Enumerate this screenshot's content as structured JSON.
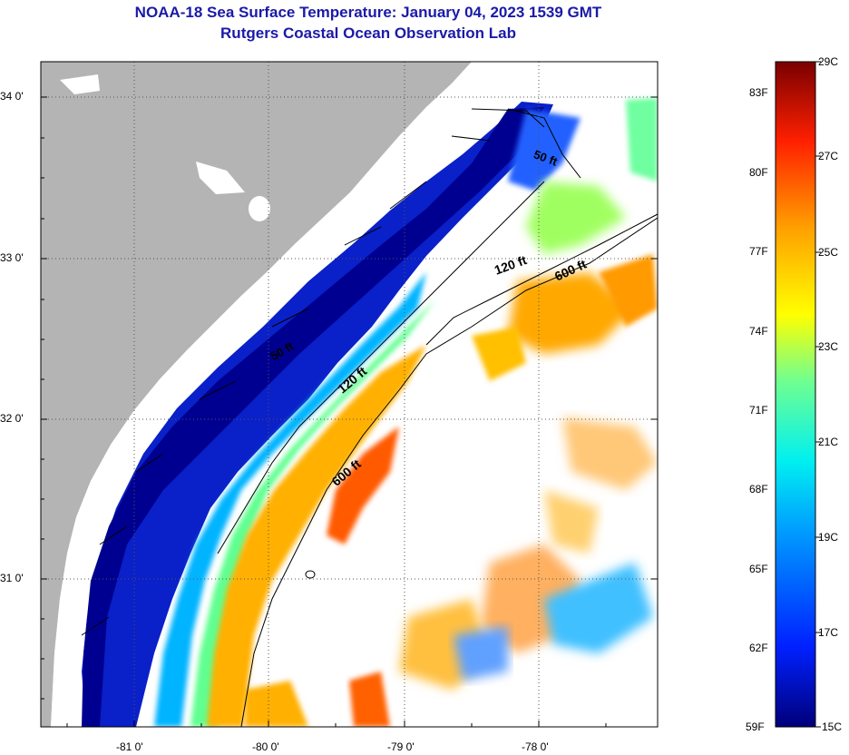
{
  "title": "NOAA-18 Sea Surface Temperature:  January 04, 2023 1539 GMT",
  "subtitle": "Rutgers Coastal Ocean Observation Lab",
  "map": {
    "lat_labels": [
      "34 0'",
      "33 0'",
      "32 0'",
      "31 0'"
    ],
    "lon_labels": [
      "-81 0'",
      "-80 0'",
      "-79 0'",
      "-78 0'"
    ],
    "contours": [
      "50 ft",
      "120 ft",
      "600 ft",
      "50 ft",
      "120 ft",
      "600 ft"
    ],
    "colors": {
      "land": "#b4b4b4",
      "no_data": "#ffffff",
      "cold": "#00008c",
      "warm": "#ff3a00"
    }
  },
  "colorbar": {
    "fahrenheit": [
      "83F",
      "80F",
      "77F",
      "74F",
      "71F",
      "68F",
      "65F",
      "62F",
      "59F"
    ],
    "celsius": [
      "29C",
      "27C",
      "25C",
      "23C",
      "21C",
      "19C",
      "17C",
      "15C"
    ]
  }
}
